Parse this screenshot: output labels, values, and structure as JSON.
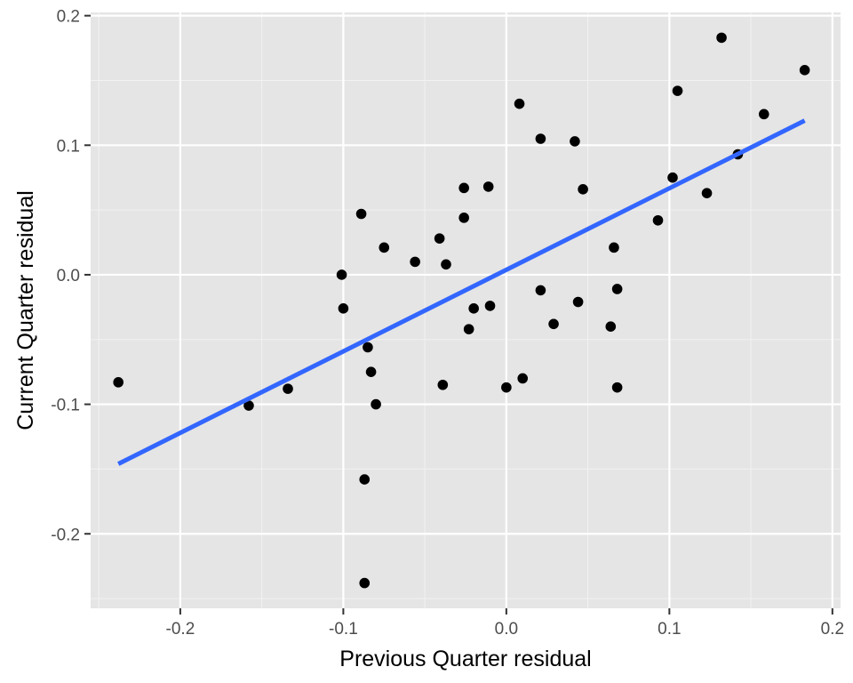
{
  "chart_data": {
    "type": "scatter",
    "title": "",
    "xlabel": "Previous Quarter residual",
    "ylabel": "Current Quarter residual",
    "xlim": [
      -0.255,
      0.205
    ],
    "ylim": [
      -0.2575,
      0.2025
    ],
    "x_ticks": [
      -0.2,
      -0.1,
      0.0,
      0.1,
      0.2
    ],
    "x_tick_labels": [
      "-0.2",
      "-0.1",
      "0.0",
      "0.1",
      "0.2"
    ],
    "y_ticks": [
      -0.2,
      -0.1,
      0.0,
      0.1,
      0.2
    ],
    "y_tick_labels": [
      "-0.2",
      "-0.1",
      "0.0",
      "0.1",
      "0.2"
    ],
    "grid": true,
    "background": "#e5e5e5",
    "point_color": "#000000",
    "points": [
      {
        "x": -0.238,
        "y": -0.083
      },
      {
        "x": -0.158,
        "y": -0.101
      },
      {
        "x": -0.134,
        "y": -0.088
      },
      {
        "x": -0.101,
        "y": 0.0
      },
      {
        "x": -0.1,
        "y": -0.026
      },
      {
        "x": -0.089,
        "y": 0.047
      },
      {
        "x": -0.087,
        "y": -0.158
      },
      {
        "x": -0.087,
        "y": -0.238
      },
      {
        "x": -0.085,
        "y": -0.056
      },
      {
        "x": -0.083,
        "y": -0.075
      },
      {
        "x": -0.08,
        "y": -0.1
      },
      {
        "x": -0.075,
        "y": 0.021
      },
      {
        "x": -0.056,
        "y": 0.01
      },
      {
        "x": -0.041,
        "y": 0.028
      },
      {
        "x": -0.039,
        "y": -0.085
      },
      {
        "x": -0.037,
        "y": 0.008
      },
      {
        "x": -0.026,
        "y": 0.067
      },
      {
        "x": -0.026,
        "y": 0.044
      },
      {
        "x": -0.023,
        "y": -0.042
      },
      {
        "x": -0.02,
        "y": -0.026
      },
      {
        "x": -0.011,
        "y": 0.068
      },
      {
        "x": -0.01,
        "y": -0.024
      },
      {
        "x": 0.0,
        "y": -0.087
      },
      {
        "x": 0.008,
        "y": 0.132
      },
      {
        "x": 0.01,
        "y": -0.08
      },
      {
        "x": 0.021,
        "y": 0.105
      },
      {
        "x": 0.021,
        "y": -0.012
      },
      {
        "x": 0.029,
        "y": -0.038
      },
      {
        "x": 0.042,
        "y": 0.103
      },
      {
        "x": 0.044,
        "y": -0.021
      },
      {
        "x": 0.047,
        "y": 0.066
      },
      {
        "x": 0.064,
        "y": -0.04
      },
      {
        "x": 0.066,
        "y": 0.021
      },
      {
        "x": 0.068,
        "y": -0.087
      },
      {
        "x": 0.068,
        "y": -0.011
      },
      {
        "x": 0.093,
        "y": 0.042
      },
      {
        "x": 0.102,
        "y": 0.075
      },
      {
        "x": 0.105,
        "y": 0.142
      },
      {
        "x": 0.123,
        "y": 0.063
      },
      {
        "x": 0.132,
        "y": 0.183
      },
      {
        "x": 0.142,
        "y": 0.093
      },
      {
        "x": 0.158,
        "y": 0.124
      },
      {
        "x": 0.183,
        "y": 0.158
      }
    ],
    "fit_line": {
      "color": "#3366ff",
      "x": [
        -0.238,
        0.183
      ],
      "y": [
        -0.146,
        0.119
      ]
    }
  }
}
